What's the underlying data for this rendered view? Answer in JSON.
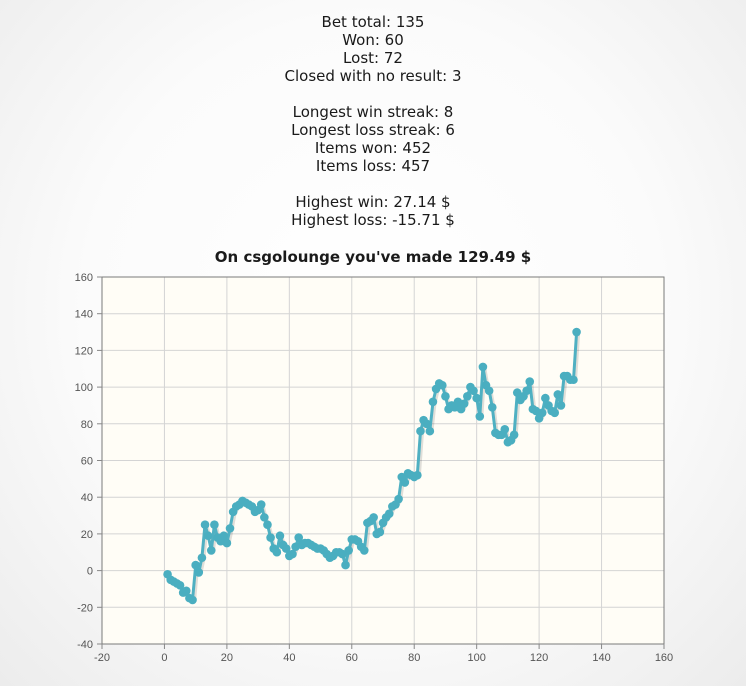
{
  "stats": {
    "bet_total": "Bet total: 135",
    "won": "Won: 60",
    "lost": "Lost: 72",
    "no_result": "Closed with no result: 3",
    "longest_win_streak": "Longest win streak: 8",
    "longest_loss_streak": "Longest loss streak: 6",
    "items_won": "Items won: 452",
    "items_loss": "Items loss: 457",
    "highest_win": "Highest win: 27.14 $",
    "highest_loss": "Highest loss: -15.71 $"
  },
  "headline": "On csgolounge you've made 129.49 $",
  "colors": {
    "line": "#4fb0c2",
    "marker": "#4aaec0",
    "plot_background": "#fffdf6",
    "grid": "#d4d4d4"
  },
  "chart_data": {
    "type": "line",
    "title": "",
    "xlabel": "",
    "ylabel": "",
    "xlim": [
      -20,
      160
    ],
    "ylim": [
      -40,
      160
    ],
    "xticks": [
      -20,
      0,
      20,
      40,
      60,
      80,
      100,
      120,
      140,
      160
    ],
    "yticks": [
      -40,
      -20,
      0,
      20,
      40,
      60,
      80,
      100,
      120,
      140,
      160
    ],
    "grid": true,
    "series": [
      {
        "name": "",
        "points": [
          [
            1,
            -2
          ],
          [
            2,
            -5
          ],
          [
            3,
            -6
          ],
          [
            4,
            -7
          ],
          [
            5,
            -8
          ],
          [
            6,
            -12
          ],
          [
            7,
            -11
          ],
          [
            8,
            -15
          ],
          [
            9,
            -16
          ],
          [
            10,
            3
          ],
          [
            11,
            -1
          ],
          [
            12,
            7
          ],
          [
            13,
            25
          ],
          [
            14,
            19
          ],
          [
            15,
            11
          ],
          [
            16,
            25
          ],
          [
            17,
            18
          ],
          [
            18,
            16
          ],
          [
            19,
            19
          ],
          [
            20,
            15
          ],
          [
            21,
            23
          ],
          [
            22,
            32
          ],
          [
            23,
            35
          ],
          [
            24,
            36
          ],
          [
            25,
            38
          ],
          [
            26,
            37
          ],
          [
            27,
            36
          ],
          [
            28,
            35
          ],
          [
            29,
            32
          ],
          [
            30,
            33
          ],
          [
            31,
            36
          ],
          [
            32,
            29
          ],
          [
            33,
            25
          ],
          [
            34,
            18
          ],
          [
            35,
            12
          ],
          [
            36,
            10
          ],
          [
            37,
            19
          ],
          [
            38,
            14
          ],
          [
            39,
            12
          ],
          [
            40,
            8
          ],
          [
            41,
            9
          ],
          [
            42,
            13
          ],
          [
            43,
            18
          ],
          [
            44,
            14
          ],
          [
            45,
            15
          ],
          [
            46,
            15
          ],
          [
            47,
            14
          ],
          [
            48,
            13
          ],
          [
            49,
            12
          ],
          [
            50,
            12
          ],
          [
            51,
            11
          ],
          [
            52,
            9
          ],
          [
            53,
            7
          ],
          [
            54,
            8
          ],
          [
            55,
            10
          ],
          [
            56,
            10
          ],
          [
            57,
            9
          ],
          [
            58,
            3
          ],
          [
            59,
            11
          ],
          [
            60,
            17
          ],
          [
            61,
            17
          ],
          [
            62,
            16
          ],
          [
            63,
            13
          ],
          [
            64,
            11
          ],
          [
            65,
            26
          ],
          [
            66,
            27
          ],
          [
            67,
            29
          ],
          [
            68,
            20
          ],
          [
            69,
            21
          ],
          [
            70,
            26
          ],
          [
            71,
            29
          ],
          [
            72,
            31
          ],
          [
            73,
            35
          ],
          [
            74,
            36
          ],
          [
            75,
            39
          ],
          [
            76,
            51
          ],
          [
            77,
            48
          ],
          [
            78,
            53
          ],
          [
            79,
            52
          ],
          [
            80,
            51
          ],
          [
            81,
            52
          ],
          [
            82,
            76
          ],
          [
            83,
            82
          ],
          [
            84,
            80
          ],
          [
            85,
            76
          ],
          [
            86,
            92
          ],
          [
            87,
            99
          ],
          [
            88,
            102
          ],
          [
            89,
            101
          ],
          [
            90,
            95
          ],
          [
            91,
            88
          ],
          [
            92,
            90
          ],
          [
            93,
            89
          ],
          [
            94,
            92
          ],
          [
            95,
            88
          ],
          [
            96,
            91
          ],
          [
            97,
            95
          ],
          [
            98,
            100
          ],
          [
            99,
            98
          ],
          [
            100,
            94
          ],
          [
            101,
            84
          ],
          [
            102,
            111
          ],
          [
            103,
            101
          ],
          [
            104,
            98
          ],
          [
            105,
            89
          ],
          [
            106,
            75
          ],
          [
            107,
            74
          ],
          [
            108,
            74
          ],
          [
            109,
            77
          ],
          [
            110,
            70
          ],
          [
            111,
            71
          ],
          [
            112,
            74
          ],
          [
            113,
            97
          ],
          [
            114,
            93
          ],
          [
            115,
            95
          ],
          [
            116,
            98
          ],
          [
            117,
            103
          ],
          [
            118,
            88
          ],
          [
            119,
            87
          ],
          [
            120,
            83
          ],
          [
            121,
            86
          ],
          [
            122,
            94
          ],
          [
            123,
            90
          ],
          [
            124,
            87
          ],
          [
            125,
            86
          ],
          [
            126,
            96
          ],
          [
            127,
            90
          ],
          [
            128,
            106
          ],
          [
            129,
            106
          ],
          [
            130,
            104
          ],
          [
            131,
            104
          ],
          [
            132,
            130
          ]
        ]
      }
    ]
  }
}
